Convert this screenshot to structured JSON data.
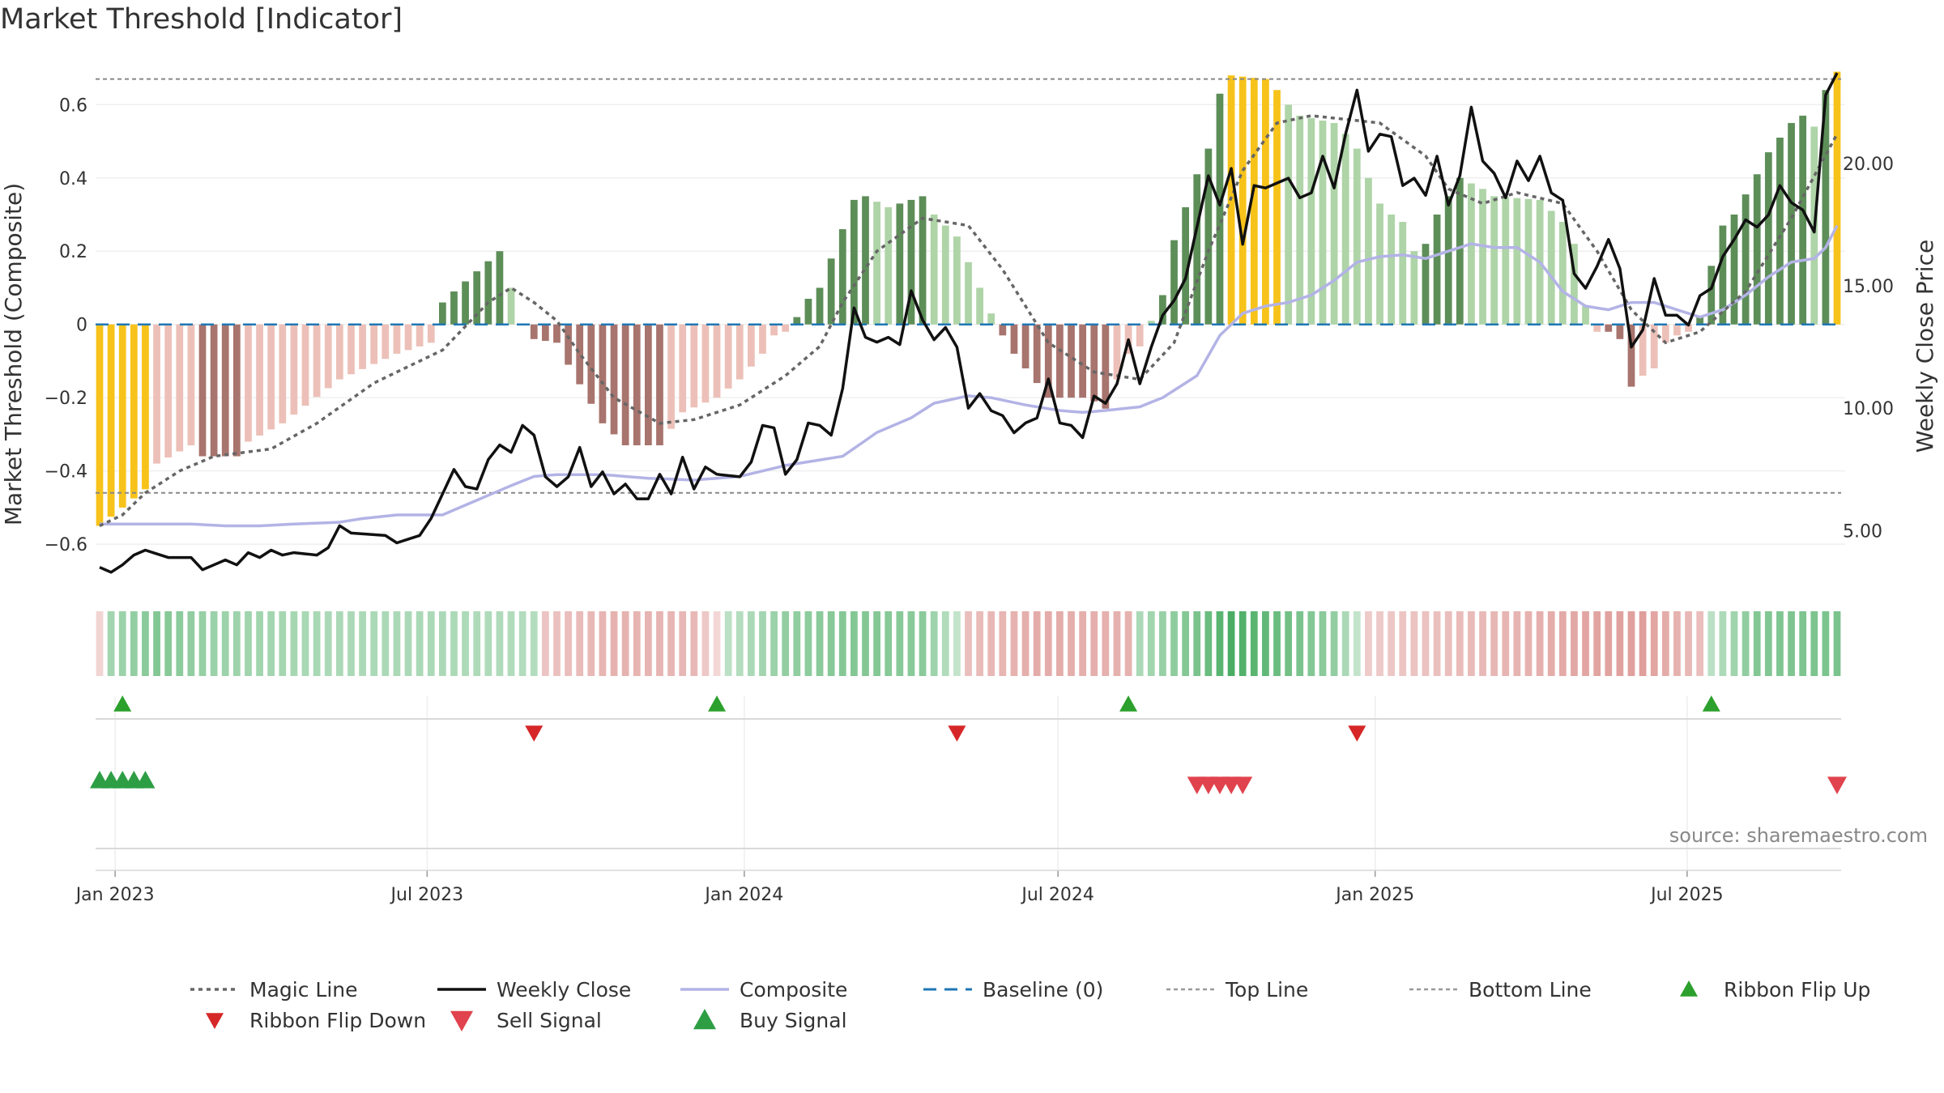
{
  "title": "Market Threshold [Indicator]",
  "source": "source: sharemaestro.com",
  "chart_data": {
    "type": "bar",
    "left_axis": {
      "label": "Market Threshold (Composite)",
      "ticks": [
        0.6,
        0.4,
        0.2,
        0,
        -0.2,
        -0.4,
        -0.6
      ],
      "tick_labels": [
        "0.6",
        "0.4",
        "0.2",
        "0",
        "−0.2",
        "−0.4",
        "−0.6"
      ],
      "range": [
        -0.75,
        0.72
      ]
    },
    "right_axis": {
      "label": "Weekly Close Price",
      "ticks": [
        20,
        15,
        10,
        5
      ],
      "tick_labels": [
        "20.00",
        "15.00",
        "10.00",
        "5.00"
      ],
      "range": [
        2.2,
        24.2
      ]
    },
    "x_axis": {
      "start": "2022-12-23",
      "end": "2025-09-26",
      "ticks": [
        "2023-01-01",
        "2023-07-01",
        "2024-01-01",
        "2024-07-01",
        "2025-01-01",
        "2025-07-01"
      ],
      "tick_labels": [
        "Jan 2023",
        "Jul 2023",
        "Jan 2024",
        "Jul 2024",
        "Jan 2025",
        "Jul 2025"
      ]
    },
    "top_line": 0.67,
    "bottom_line": -0.46,
    "colors": {
      "gold": "#f7c31a",
      "green_dark": "#5d8e58",
      "green_light": "#aed4a7",
      "red_dark": "#a8746e",
      "red_light": "#ecc0b8",
      "magic_line": "#666666",
      "weekly_close": "#111111",
      "composite": "#b3b3e6",
      "baseline": "#1f77b4",
      "ribbon_flip_up": "#2ca02c",
      "ribbon_flip_down": "#d62728",
      "sell_signal": "#e0434d",
      "buy_signal": "#2e9e45"
    },
    "bar_keypoints": [
      [
        0,
        -0.55
      ],
      [
        4,
        -0.45
      ],
      [
        5,
        -0.38
      ],
      [
        8,
        -0.33
      ],
      [
        9,
        -0.36
      ],
      [
        12,
        -0.36
      ],
      [
        13,
        -0.32
      ],
      [
        16,
        -0.27
      ],
      [
        21,
        -0.15
      ],
      [
        26,
        -0.08
      ],
      [
        29,
        -0.05
      ],
      [
        30,
        0.06
      ],
      [
        31,
        0.09
      ],
      [
        35,
        0.2
      ],
      [
        36,
        0.1
      ],
      [
        37,
        0.0
      ],
      [
        38,
        -0.04
      ],
      [
        40,
        -0.05
      ],
      [
        41,
        -0.11
      ],
      [
        44,
        -0.27
      ],
      [
        46,
        -0.33
      ],
      [
        49,
        -0.33
      ],
      [
        51,
        -0.24
      ],
      [
        54,
        -0.2
      ],
      [
        56,
        -0.15
      ],
      [
        58,
        -0.08
      ],
      [
        59,
        -0.03
      ],
      [
        60,
        -0.02
      ],
      [
        61,
        0.02
      ],
      [
        62,
        0.07
      ],
      [
        63,
        0.1
      ],
      [
        66,
        0.34
      ],
      [
        67,
        0.35
      ],
      [
        69,
        0.32
      ],
      [
        72,
        0.35
      ],
      [
        73,
        0.3
      ],
      [
        75,
        0.24
      ],
      [
        77,
        0.1
      ],
      [
        78,
        0.03
      ],
      [
        79,
        -0.03
      ],
      [
        80,
        -0.08
      ],
      [
        82,
        -0.16
      ],
      [
        83,
        -0.2
      ],
      [
        85,
        -0.2
      ],
      [
        86,
        -0.2
      ],
      [
        87,
        -0.21
      ],
      [
        88,
        -0.23
      ],
      [
        89,
        -0.15
      ],
      [
        90,
        -0.08
      ],
      [
        91,
        -0.06
      ],
      [
        93,
        0.08
      ],
      [
        94,
        0.23
      ],
      [
        95,
        0.32
      ],
      [
        96,
        0.41
      ],
      [
        97,
        0.48
      ],
      [
        98,
        0.63
      ],
      [
        99,
        0.68
      ],
      [
        102,
        0.67
      ],
      [
        103,
        0.64
      ],
      [
        104,
        0.6
      ],
      [
        105,
        0.57
      ],
      [
        108,
        0.55
      ],
      [
        109,
        0.52
      ],
      [
        110,
        0.48
      ],
      [
        111,
        0.4
      ],
      [
        112,
        0.33
      ],
      [
        113,
        0.3
      ],
      [
        114,
        0.28
      ],
      [
        115,
        0.2
      ],
      [
        116,
        0.22
      ],
      [
        117,
        0.3
      ],
      [
        119,
        0.4
      ],
      [
        121,
        0.37
      ],
      [
        122,
        0.35
      ],
      [
        126,
        0.34
      ],
      [
        128,
        0.28
      ],
      [
        129,
        0.22
      ],
      [
        130,
        0.05
      ],
      [
        131,
        -0.02
      ],
      [
        132,
        -0.02
      ],
      [
        133,
        -0.04
      ],
      [
        134,
        -0.17
      ],
      [
        135,
        -0.14
      ],
      [
        136,
        -0.12
      ],
      [
        137,
        -0.05
      ],
      [
        138,
        -0.03
      ],
      [
        139,
        -0.02
      ],
      [
        140,
        0.02
      ],
      [
        141,
        0.16
      ],
      [
        142,
        0.27
      ],
      [
        143,
        0.3
      ],
      [
        145,
        0.41
      ],
      [
        146,
        0.47
      ],
      [
        148,
        0.55
      ],
      [
        149,
        0.57
      ],
      [
        150,
        0.54
      ],
      [
        151,
        0.64
      ],
      [
        152,
        0.69
      ]
    ],
    "bar_gold_indices": [
      0,
      1,
      2,
      3,
      4,
      99,
      100,
      101,
      102,
      103,
      152
    ],
    "magic_keypoints": [
      [
        0,
        -0.55
      ],
      [
        2,
        -0.52
      ],
      [
        4,
        -0.46
      ],
      [
        7,
        -0.4
      ],
      [
        10,
        -0.36
      ],
      [
        15,
        -0.34
      ],
      [
        19,
        -0.27
      ],
      [
        24,
        -0.16
      ],
      [
        30,
        -0.07
      ],
      [
        34,
        0.06
      ],
      [
        36,
        0.1
      ],
      [
        38,
        0.06
      ],
      [
        40,
        0.01
      ],
      [
        42,
        -0.08
      ],
      [
        45,
        -0.2
      ],
      [
        49,
        -0.27
      ],
      [
        52,
        -0.26
      ],
      [
        56,
        -0.22
      ],
      [
        60,
        -0.14
      ],
      [
        63,
        -0.06
      ],
      [
        65,
        0.06
      ],
      [
        68,
        0.2
      ],
      [
        72,
        0.29
      ],
      [
        76,
        0.27
      ],
      [
        79,
        0.15
      ],
      [
        83,
        -0.05
      ],
      [
        87,
        -0.13
      ],
      [
        91,
        -0.15
      ],
      [
        94,
        -0.05
      ],
      [
        97,
        0.2
      ],
      [
        100,
        0.42
      ],
      [
        103,
        0.55
      ],
      [
        106,
        0.57
      ],
      [
        109,
        0.56
      ],
      [
        112,
        0.55
      ],
      [
        116,
        0.46
      ],
      [
        118,
        0.37
      ],
      [
        121,
        0.33
      ],
      [
        124,
        0.36
      ],
      [
        128,
        0.33
      ],
      [
        131,
        0.2
      ],
      [
        134,
        0.04
      ],
      [
        137,
        -0.05
      ],
      [
        140,
        -0.02
      ],
      [
        144,
        0.09
      ],
      [
        148,
        0.29
      ],
      [
        152,
        0.52
      ]
    ],
    "close_keypoints": [
      [
        0,
        3.5
      ],
      [
        1,
        3.3
      ],
      [
        2,
        3.6
      ],
      [
        3,
        4.0
      ],
      [
        4,
        4.2
      ],
      [
        6,
        3.9
      ],
      [
        8,
        3.9
      ],
      [
        9,
        3.4
      ],
      [
        11,
        3.8
      ],
      [
        12,
        3.6
      ],
      [
        13,
        4.1
      ],
      [
        14,
        3.9
      ],
      [
        15,
        4.2
      ],
      [
        16,
        4.0
      ],
      [
        17,
        4.1
      ],
      [
        19,
        4.0
      ],
      [
        20,
        4.3
      ],
      [
        21,
        5.2
      ],
      [
        22,
        4.9
      ],
      [
        25,
        4.8
      ],
      [
        26,
        4.5
      ],
      [
        28,
        4.8
      ],
      [
        29,
        5.5
      ],
      [
        30,
        6.5
      ],
      [
        31,
        7.5
      ],
      [
        32,
        6.8
      ],
      [
        33,
        6.7
      ],
      [
        34,
        7.9
      ],
      [
        35,
        8.5
      ],
      [
        36,
        8.2
      ],
      [
        37,
        9.3
      ],
      [
        38,
        8.9
      ],
      [
        39,
        7.2
      ],
      [
        40,
        6.8
      ],
      [
        41,
        7.2
      ],
      [
        42,
        8.4
      ],
      [
        43,
        6.8
      ],
      [
        44,
        7.4
      ],
      [
        45,
        6.5
      ],
      [
        46,
        6.9
      ],
      [
        47,
        6.3
      ],
      [
        48,
        6.3
      ],
      [
        49,
        7.3
      ],
      [
        50,
        6.5
      ],
      [
        51,
        8.0
      ],
      [
        52,
        6.7
      ],
      [
        53,
        7.6
      ],
      [
        54,
        7.3
      ],
      [
        56,
        7.2
      ],
      [
        57,
        7.8
      ],
      [
        58,
        9.3
      ],
      [
        59,
        9.2
      ],
      [
        60,
        7.3
      ],
      [
        61,
        7.9
      ],
      [
        62,
        9.4
      ],
      [
        63,
        9.3
      ],
      [
        64,
        8.9
      ],
      [
        65,
        10.8
      ],
      [
        66,
        14.1
      ],
      [
        67,
        12.9
      ],
      [
        68,
        12.7
      ],
      [
        69,
        12.9
      ],
      [
        70,
        12.6
      ],
      [
        71,
        14.8
      ],
      [
        72,
        13.6
      ],
      [
        73,
        12.8
      ],
      [
        74,
        13.3
      ],
      [
        75,
        12.5
      ],
      [
        76,
        10.0
      ],
      [
        77,
        10.6
      ],
      [
        78,
        9.9
      ],
      [
        79,
        9.7
      ],
      [
        80,
        9.0
      ],
      [
        81,
        9.4
      ],
      [
        82,
        9.6
      ],
      [
        83,
        11.2
      ],
      [
        84,
        9.4
      ],
      [
        85,
        9.3
      ],
      [
        86,
        8.8
      ],
      [
        87,
        10.5
      ],
      [
        88,
        10.2
      ],
      [
        89,
        11.0
      ],
      [
        90,
        12.8
      ],
      [
        91,
        11.0
      ],
      [
        92,
        12.5
      ],
      [
        93,
        13.8
      ],
      [
        94,
        14.4
      ],
      [
        95,
        15.3
      ],
      [
        96,
        17.4
      ],
      [
        97,
        19.5
      ],
      [
        98,
        18.3
      ],
      [
        99,
        19.8
      ],
      [
        100,
        16.7
      ],
      [
        101,
        19.1
      ],
      [
        102,
        19.0
      ],
      [
        104,
        19.4
      ],
      [
        105,
        18.6
      ],
      [
        106,
        18.8
      ],
      [
        107,
        20.3
      ],
      [
        108,
        19.0
      ],
      [
        109,
        21.2
      ],
      [
        110,
        23.0
      ],
      [
        111,
        20.5
      ],
      [
        112,
        21.2
      ],
      [
        113,
        21.1
      ],
      [
        114,
        19.1
      ],
      [
        115,
        19.4
      ],
      [
        116,
        18.7
      ],
      [
        117,
        20.3
      ],
      [
        118,
        18.3
      ],
      [
        119,
        19.5
      ],
      [
        120,
        22.3
      ],
      [
        121,
        20.1
      ],
      [
        122,
        19.6
      ],
      [
        123,
        18.6
      ],
      [
        124,
        20.1
      ],
      [
        125,
        19.3
      ],
      [
        126,
        20.3
      ],
      [
        127,
        18.8
      ],
      [
        128,
        18.5
      ],
      [
        129,
        15.5
      ],
      [
        130,
        14.9
      ],
      [
        131,
        15.8
      ],
      [
        132,
        16.9
      ],
      [
        133,
        15.7
      ],
      [
        134,
        12.5
      ],
      [
        135,
        13.2
      ],
      [
        136,
        15.3
      ],
      [
        137,
        13.8
      ],
      [
        138,
        13.8
      ],
      [
        139,
        13.4
      ],
      [
        140,
        14.6
      ],
      [
        141,
        14.9
      ],
      [
        142,
        16.2
      ],
      [
        143,
        16.9
      ],
      [
        144,
        17.7
      ],
      [
        145,
        17.4
      ],
      [
        146,
        17.9
      ],
      [
        147,
        19.1
      ],
      [
        148,
        18.4
      ],
      [
        149,
        18.1
      ],
      [
        150,
        17.2
      ],
      [
        151,
        22.8
      ],
      [
        152,
        23.7
      ]
    ],
    "composite_keypoints": [
      [
        0,
        -0.545
      ],
      [
        4,
        -0.545
      ],
      [
        8,
        -0.545
      ],
      [
        11,
        -0.55
      ],
      [
        14,
        -0.55
      ],
      [
        17,
        -0.545
      ],
      [
        21,
        -0.54
      ],
      [
        23,
        -0.53
      ],
      [
        26,
        -0.52
      ],
      [
        30,
        -0.52
      ],
      [
        33,
        -0.48
      ],
      [
        36,
        -0.44
      ],
      [
        38,
        -0.415
      ],
      [
        40,
        -0.41
      ],
      [
        44,
        -0.41
      ],
      [
        48,
        -0.42
      ],
      [
        52,
        -0.425
      ],
      [
        56,
        -0.415
      ],
      [
        60,
        -0.385
      ],
      [
        63,
        -0.37
      ],
      [
        65,
        -0.36
      ],
      [
        68,
        -0.295
      ],
      [
        71,
        -0.255
      ],
      [
        73,
        -0.215
      ],
      [
        76,
        -0.195
      ],
      [
        78,
        -0.2
      ],
      [
        81,
        -0.22
      ],
      [
        84,
        -0.235
      ],
      [
        86,
        -0.24
      ],
      [
        88,
        -0.235
      ],
      [
        91,
        -0.225
      ],
      [
        93,
        -0.2
      ],
      [
        96,
        -0.14
      ],
      [
        98,
        -0.03
      ],
      [
        100,
        0.03
      ],
      [
        102,
        0.05
      ],
      [
        104,
        0.06
      ],
      [
        106,
        0.08
      ],
      [
        108,
        0.12
      ],
      [
        110,
        0.17
      ],
      [
        112,
        0.185
      ],
      [
        114,
        0.19
      ],
      [
        116,
        0.18
      ],
      [
        118,
        0.2
      ],
      [
        120,
        0.22
      ],
      [
        122,
        0.21
      ],
      [
        124,
        0.21
      ],
      [
        126,
        0.17
      ],
      [
        128,
        0.09
      ],
      [
        130,
        0.05
      ],
      [
        132,
        0.04
      ],
      [
        134,
        0.06
      ],
      [
        136,
        0.06
      ],
      [
        138,
        0.04
      ],
      [
        140,
        0.02
      ],
      [
        142,
        0.04
      ],
      [
        144,
        0.08
      ],
      [
        146,
        0.13
      ],
      [
        148,
        0.17
      ],
      [
        150,
        0.18
      ],
      [
        151,
        0.21
      ],
      [
        152,
        0.27
      ]
    ],
    "ribbon_keypoints": [
      [
        0,
        -0.12
      ],
      [
        1,
        0.35
      ],
      [
        5,
        0.55
      ],
      [
        10,
        0.4
      ],
      [
        20,
        0.3
      ],
      [
        30,
        0.3
      ],
      [
        38,
        0.25
      ],
      [
        39,
        -0.25
      ],
      [
        45,
        -0.4
      ],
      [
        52,
        -0.35
      ],
      [
        54,
        -0.1
      ],
      [
        55,
        0.2
      ],
      [
        60,
        0.45
      ],
      [
        66,
        0.55
      ],
      [
        72,
        0.5
      ],
      [
        75,
        0.15
      ],
      [
        76,
        -0.3
      ],
      [
        82,
        -0.45
      ],
      [
        90,
        -0.4
      ],
      [
        91,
        0.3
      ],
      [
        96,
        0.6
      ],
      [
        99,
        0.9
      ],
      [
        103,
        0.7
      ],
      [
        108,
        0.45
      ],
      [
        110,
        0.15
      ],
      [
        111,
        -0.2
      ],
      [
        118,
        -0.3
      ],
      [
        125,
        -0.4
      ],
      [
        130,
        -0.5
      ],
      [
        135,
        -0.55
      ],
      [
        140,
        -0.3
      ],
      [
        141,
        0.2
      ],
      [
        145,
        0.55
      ],
      [
        152,
        0.6
      ]
    ],
    "ribbon_flip_up": [
      2,
      54,
      90,
      141
    ],
    "ribbon_flip_down": [
      38,
      75,
      110
    ],
    "buy_signal": [
      0,
      1,
      2,
      3,
      4
    ],
    "sell_signal": [
      96,
      97,
      98,
      99,
      100,
      152
    ],
    "legend": [
      {
        "key": "magic",
        "label": "Magic Line"
      },
      {
        "key": "close",
        "label": "Weekly Close"
      },
      {
        "key": "composite",
        "label": "Composite"
      },
      {
        "key": "baseline",
        "label": "Baseline (0)"
      },
      {
        "key": "top",
        "label": "Top Line"
      },
      {
        "key": "bottom",
        "label": "Bottom Line"
      },
      {
        "key": "flipup",
        "label": "Ribbon Flip Up"
      },
      {
        "key": "flipdown",
        "label": "Ribbon Flip Down"
      },
      {
        "key": "sell",
        "label": "Sell Signal"
      },
      {
        "key": "buy",
        "label": "Buy Signal"
      }
    ]
  }
}
